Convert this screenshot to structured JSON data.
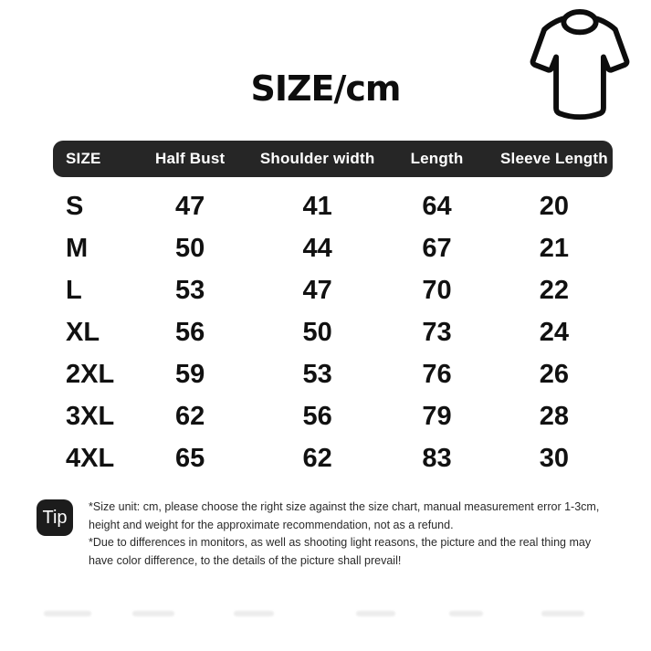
{
  "title": "SIZE/cm",
  "chart_data": {
    "type": "table",
    "title": "SIZE/cm",
    "columns": [
      "SIZE",
      "Half Bust",
      "Shoulder width",
      "Length",
      "Sleeve Length"
    ],
    "rows": [
      [
        "S",
        "47",
        "41",
        "64",
        "20"
      ],
      [
        "M",
        "50",
        "44",
        "67",
        "21"
      ],
      [
        "L",
        "53",
        "47",
        "70",
        "22"
      ],
      [
        "XL",
        "56",
        "50",
        "73",
        "24"
      ],
      [
        "2XL",
        "59",
        "53",
        "76",
        "26"
      ],
      [
        "3XL",
        "62",
        "56",
        "79",
        "28"
      ],
      [
        "4XL",
        "65",
        "62",
        "83",
        "30"
      ]
    ]
  },
  "tip": {
    "badge_label": "Tip",
    "notes": [
      "*Size unit: cm, please choose the right size against the size chart, manual measurement error 1-3cm, height and weight for the approximate recommendation, not as a refund.",
      "*Due to differences in monitors, as well as shooting light reasons, the picture and the real thing may have color difference, to the details of the picture shall prevail!"
    ]
  },
  "icons": {
    "tshirt": "tshirt-outline-icon"
  },
  "colors": {
    "header_bg": "#262626",
    "badge_bg": "#1c1c1c",
    "text": "#141414"
  }
}
